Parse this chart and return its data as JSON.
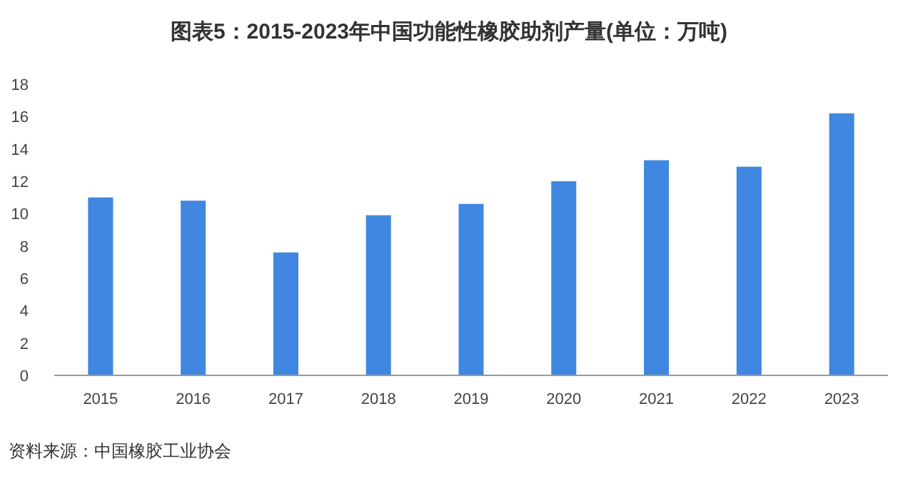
{
  "chart_data": {
    "type": "bar",
    "title": "图表5：2015-2023年中国功能性橡胶助剂产量(单位：万吨)",
    "categories": [
      "2015",
      "2016",
      "2017",
      "2018",
      "2019",
      "2020",
      "2021",
      "2022",
      "2023"
    ],
    "values": [
      11.0,
      10.8,
      7.6,
      9.9,
      10.6,
      12.0,
      13.3,
      12.9,
      16.2
    ],
    "color": "#3f87e0",
    "ylim": [
      0,
      18
    ],
    "yticks": [
      0,
      2,
      4,
      6,
      8,
      10,
      12,
      14,
      16,
      18
    ],
    "grid": false,
    "annotations": [
      "资料来源：中国橡胶工业协会"
    ]
  }
}
